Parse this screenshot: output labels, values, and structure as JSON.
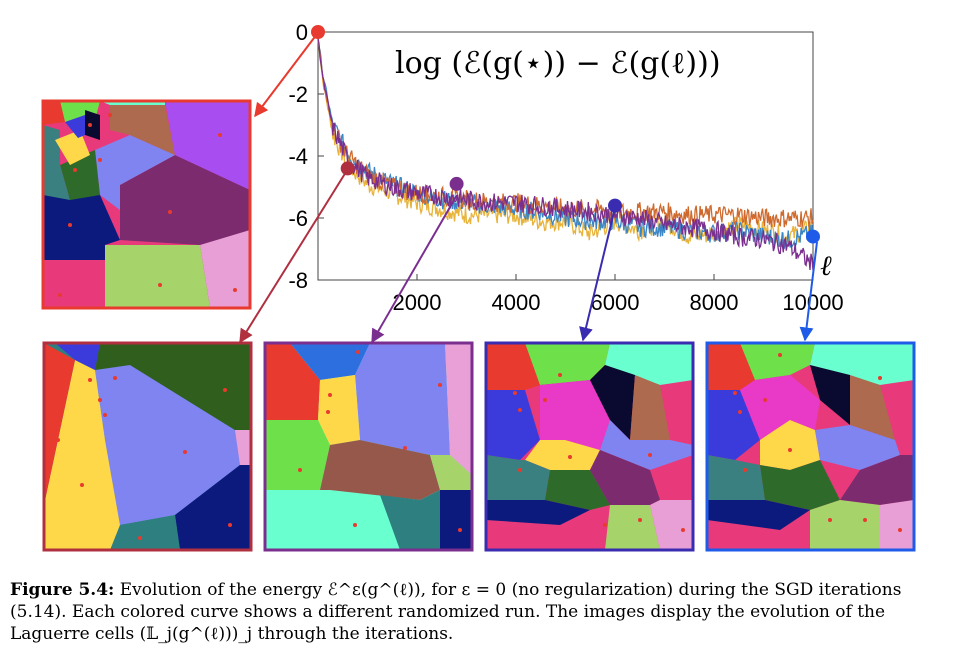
{
  "figure": {
    "plot_title": "log (ℰ(g(⋆)) − ℰ(g(ℓ)))",
    "x_axis_label": "ℓ",
    "chart_data": {
      "type": "line",
      "title": "log (ℰ(g(⋆)) − ℰ(g(ℓ)))",
      "xlabel": "ℓ",
      "ylabel": "",
      "xlim": [
        0,
        10000
      ],
      "ylim": [
        -8,
        0
      ],
      "xticks": [
        "2000",
        "4000",
        "6000",
        "8000",
        "10000"
      ],
      "yticks": [
        "0",
        "-2",
        "-4",
        "-6",
        "-8"
      ],
      "grid": false,
      "series": [
        {
          "color": "#e8b33a",
          "x": [
            0,
            100,
            300,
            600,
            1000,
            1500,
            2000,
            2500,
            3000,
            3500,
            4000,
            4500,
            5000,
            5500,
            6000,
            6500,
            7000,
            7500,
            8000,
            8500,
            9000,
            9500,
            10000
          ],
          "y": [
            -0.2,
            -1.6,
            -3.3,
            -4.3,
            -4.9,
            -5.2,
            -5.5,
            -5.7,
            -5.9,
            -5.9,
            -5.9,
            -6.1,
            -6.1,
            -6.5,
            -6.1,
            -6.4,
            -6.1,
            -6.6,
            -6.5,
            -6.2,
            -6.4,
            -6.6,
            -6.3
          ]
        },
        {
          "color": "#3b86c6",
          "x": [
            0,
            100,
            300,
            600,
            1000,
            1500,
            2000,
            2500,
            3000,
            3500,
            4000,
            4500,
            5000,
            5500,
            6000,
            6500,
            7000,
            7500,
            8000,
            8500,
            9000,
            9500,
            10000
          ],
          "y": [
            -0.2,
            -1.4,
            -3.0,
            -3.9,
            -4.5,
            -4.9,
            -5.2,
            -5.4,
            -5.5,
            -5.6,
            -5.7,
            -5.8,
            -6.0,
            -6.1,
            -6.1,
            -6.3,
            -6.3,
            -6.4,
            -6.5,
            -6.4,
            -6.6,
            -6.7,
            -6.5
          ]
        },
        {
          "color": "#cf6a2e",
          "x": [
            0,
            100,
            300,
            600,
            1000,
            1500,
            2000,
            2500,
            3000,
            3500,
            4000,
            4500,
            5000,
            5500,
            6000,
            6500,
            7000,
            7500,
            8000,
            8500,
            9000,
            9500,
            10000
          ],
          "y": [
            -0.2,
            -1.5,
            -3.1,
            -4.0,
            -4.6,
            -5.0,
            -5.2,
            -5.3,
            -5.4,
            -5.5,
            -5.5,
            -5.6,
            -5.7,
            -5.7,
            -5.8,
            -5.8,
            -5.8,
            -5.9,
            -5.9,
            -5.9,
            -6.0,
            -6.0,
            -6.0
          ]
        },
        {
          "color": "#7a2f8f",
          "x": [
            0,
            100,
            300,
            600,
            1000,
            1500,
            2000,
            2500,
            3000,
            3500,
            4000,
            4500,
            5000,
            5500,
            6000,
            6500,
            7000,
            7500,
            8000,
            8500,
            9000,
            9500,
            10000
          ],
          "y": [
            -0.2,
            -1.5,
            -3.1,
            -4.1,
            -4.7,
            -5.0,
            -5.2,
            -5.3,
            -5.4,
            -5.5,
            -5.5,
            -5.6,
            -5.7,
            -5.8,
            -5.9,
            -6.0,
            -6.2,
            -6.3,
            -6.4,
            -6.6,
            -6.7,
            -6.9,
            -7.5
          ]
        }
      ],
      "markers": [
        {
          "x": 0,
          "y": 0,
          "color": "#e83a2e"
        },
        {
          "x": 600,
          "y": -4.4,
          "color": "#b03040"
        },
        {
          "x": 2800,
          "y": -4.9,
          "color": "#7a2f8f"
        },
        {
          "x": 6000,
          "y": -5.6,
          "color": "#3a2cb0"
        },
        {
          "x": 10000,
          "y": -6.6,
          "color": "#1e5be8"
        }
      ]
    }
  },
  "caption": {
    "label": "Figure 5.4:",
    "text": "Evolution of the energy ℰ^ε(g^(ℓ)), for ε = 0 (no regularization) during the SGD iterations (5.14). Each colored curve shows a different randomized run. The images display the evolution of the Laguerre cells (𝕃_j(g^(ℓ)))_j through the iterations."
  }
}
